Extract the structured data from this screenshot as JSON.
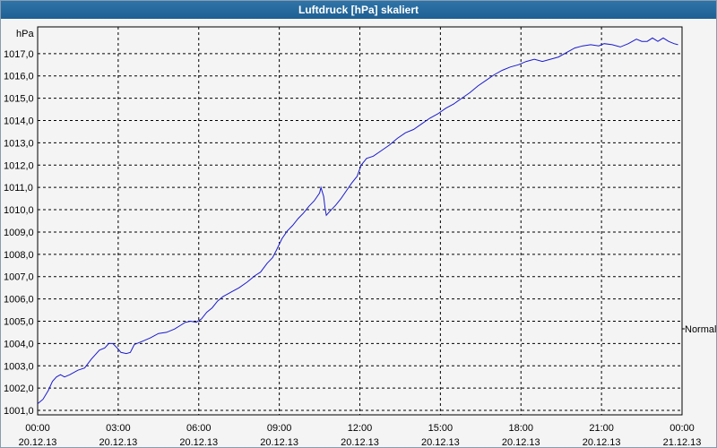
{
  "window": {
    "title": "Luftdruck [hPa] skaliert"
  },
  "chart_data": {
    "type": "line",
    "title": "Luftdruck [hPa] skaliert",
    "ylabel": "hPa",
    "right_label": "Normal",
    "ylim": [
      1000.8,
      1018.2
    ],
    "xlim": [
      0,
      24
    ],
    "grid": true,
    "line_color": "#1a1acd",
    "y_ticks": [
      "1001,0",
      "1002,0",
      "1003,0",
      "1004,0",
      "1005,0",
      "1006,0",
      "1007,0",
      "1008,0",
      "1009,0",
      "1010,0",
      "1011,0",
      "1012,0",
      "1013,0",
      "1014,0",
      "1015,0",
      "1016,0",
      "1017,0"
    ],
    "x_ticks": [
      {
        "x": 0,
        "time": "00:00",
        "date": "20.12.13"
      },
      {
        "x": 3,
        "time": "03:00",
        "date": "20.12.13"
      },
      {
        "x": 6,
        "time": "06:00",
        "date": "20.12.13"
      },
      {
        "x": 9,
        "time": "09:00",
        "date": "20.12.13"
      },
      {
        "x": 12,
        "time": "12:00",
        "date": "20.12.13"
      },
      {
        "x": 15,
        "time": "15:00",
        "date": "20.12.13"
      },
      {
        "x": 18,
        "time": "18:00",
        "date": "20.12.13"
      },
      {
        "x": 21,
        "time": "21:00",
        "date": "20.12.13"
      },
      {
        "x": 24,
        "time": "00:00",
        "date": "21.12.13"
      }
    ],
    "series": [
      {
        "points": [
          [
            0.0,
            1001.3
          ],
          [
            0.2,
            1001.5
          ],
          [
            0.4,
            1001.9
          ],
          [
            0.55,
            1002.3
          ],
          [
            0.7,
            1002.5
          ],
          [
            0.85,
            1002.6
          ],
          [
            1.0,
            1002.5
          ],
          [
            1.2,
            1002.6
          ],
          [
            1.5,
            1002.8
          ],
          [
            1.75,
            1002.9
          ],
          [
            2.0,
            1003.3
          ],
          [
            2.3,
            1003.7
          ],
          [
            2.5,
            1003.8
          ],
          [
            2.65,
            1004.0
          ],
          [
            2.8,
            1004.0
          ],
          [
            3.0,
            1003.75
          ],
          [
            3.1,
            1003.6
          ],
          [
            3.3,
            1003.55
          ],
          [
            3.45,
            1003.6
          ],
          [
            3.6,
            1003.95
          ],
          [
            3.9,
            1004.1
          ],
          [
            4.2,
            1004.25
          ],
          [
            4.5,
            1004.45
          ],
          [
            4.8,
            1004.5
          ],
          [
            5.1,
            1004.65
          ],
          [
            5.3,
            1004.8
          ],
          [
            5.5,
            1004.95
          ],
          [
            5.7,
            1005.0
          ],
          [
            5.9,
            1004.95
          ],
          [
            6.1,
            1005.1
          ],
          [
            6.3,
            1005.4
          ],
          [
            6.5,
            1005.6
          ],
          [
            6.7,
            1005.9
          ],
          [
            6.9,
            1006.1
          ],
          [
            7.2,
            1006.3
          ],
          [
            7.5,
            1006.5
          ],
          [
            7.8,
            1006.75
          ],
          [
            8.1,
            1007.05
          ],
          [
            8.3,
            1007.2
          ],
          [
            8.55,
            1007.6
          ],
          [
            8.75,
            1007.85
          ],
          [
            8.9,
            1008.2
          ],
          [
            9.1,
            1008.7
          ],
          [
            9.3,
            1009.05
          ],
          [
            9.5,
            1009.3
          ],
          [
            9.7,
            1009.6
          ],
          [
            9.9,
            1009.85
          ],
          [
            10.1,
            1010.15
          ],
          [
            10.3,
            1010.4
          ],
          [
            10.5,
            1010.75
          ],
          [
            10.55,
            1011.0
          ],
          [
            10.65,
            1010.6
          ],
          [
            10.7,
            1010.1
          ],
          [
            10.75,
            1009.75
          ],
          [
            10.9,
            1009.95
          ],
          [
            11.1,
            1010.2
          ],
          [
            11.3,
            1010.5
          ],
          [
            11.5,
            1010.85
          ],
          [
            11.7,
            1011.2
          ],
          [
            11.9,
            1011.5
          ],
          [
            12.05,
            1012.0
          ],
          [
            12.25,
            1012.3
          ],
          [
            12.5,
            1012.4
          ],
          [
            12.8,
            1012.65
          ],
          [
            13.1,
            1012.9
          ],
          [
            13.4,
            1013.2
          ],
          [
            13.7,
            1013.45
          ],
          [
            14.0,
            1013.6
          ],
          [
            14.3,
            1013.85
          ],
          [
            14.6,
            1014.1
          ],
          [
            14.9,
            1014.3
          ],
          [
            15.2,
            1014.55
          ],
          [
            15.5,
            1014.75
          ],
          [
            15.8,
            1015.0
          ],
          [
            16.1,
            1015.25
          ],
          [
            16.4,
            1015.55
          ],
          [
            16.7,
            1015.8
          ],
          [
            17.0,
            1016.05
          ],
          [
            17.3,
            1016.25
          ],
          [
            17.6,
            1016.4
          ],
          [
            17.9,
            1016.5
          ],
          [
            18.2,
            1016.65
          ],
          [
            18.5,
            1016.75
          ],
          [
            18.8,
            1016.65
          ],
          [
            19.1,
            1016.75
          ],
          [
            19.4,
            1016.85
          ],
          [
            19.7,
            1017.05
          ],
          [
            20.0,
            1017.25
          ],
          [
            20.3,
            1017.35
          ],
          [
            20.6,
            1017.4
          ],
          [
            20.9,
            1017.35
          ],
          [
            21.1,
            1017.45
          ],
          [
            21.4,
            1017.4
          ],
          [
            21.7,
            1017.3
          ],
          [
            22.0,
            1017.45
          ],
          [
            22.3,
            1017.65
          ],
          [
            22.5,
            1017.55
          ],
          [
            22.7,
            1017.55
          ],
          [
            22.9,
            1017.7
          ],
          [
            23.1,
            1017.55
          ],
          [
            23.3,
            1017.7
          ],
          [
            23.5,
            1017.55
          ],
          [
            23.7,
            1017.45
          ],
          [
            23.85,
            1017.4
          ]
        ]
      }
    ]
  }
}
